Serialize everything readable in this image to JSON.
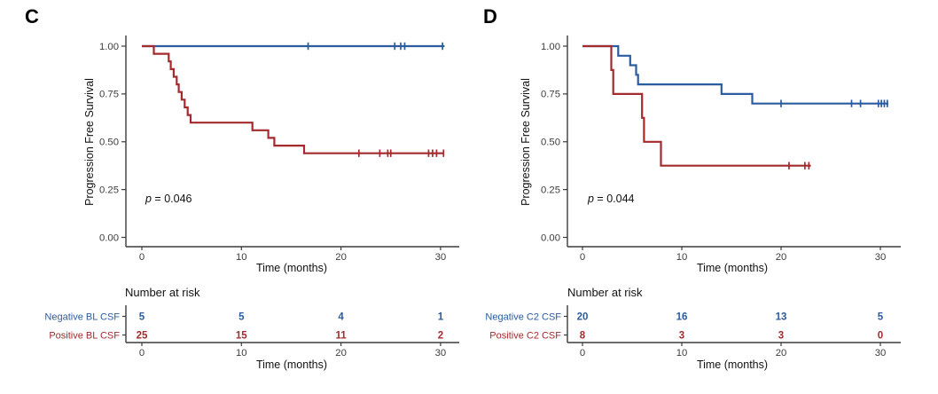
{
  "chart_data": [
    {
      "type": "line",
      "subtype": "kaplan-meier-step",
      "panel_label": "C",
      "xlabel": "Time (months)",
      "ylabel": "Progression Free Survival",
      "p_value": "p = 0.046",
      "xlim": [
        0,
        30
      ],
      "xticks": [
        0,
        10,
        20,
        30
      ],
      "ylim": [
        0,
        1
      ],
      "yticks": [
        "0.00",
        "0.25",
        "0.50",
        "0.75",
        "1.00"
      ],
      "grid": "off",
      "legend": "none",
      "series": [
        {
          "name": "Negative BL CSF",
          "color": "#2B5C9F",
          "steps": [
            [
              0,
              1.0
            ],
            [
              30.4,
              1.0
            ]
          ],
          "censors": [
            [
              16.7,
              1.0
            ],
            [
              25.4,
              1.0
            ],
            [
              26.0,
              1.0
            ],
            [
              26.4,
              1.0
            ],
            [
              30.2,
              1.0
            ]
          ]
        },
        {
          "name": "Positive BL CSF",
          "color": "#A42A2D",
          "steps": [
            [
              0,
              1.0
            ],
            [
              1.2,
              0.96
            ],
            [
              2.7,
              0.92
            ],
            [
              2.9,
              0.88
            ],
            [
              3.2,
              0.84
            ],
            [
              3.5,
              0.8
            ],
            [
              3.7,
              0.76
            ],
            [
              4.0,
              0.72
            ],
            [
              4.3,
              0.68
            ],
            [
              4.6,
              0.64
            ],
            [
              4.9,
              0.6
            ],
            [
              11.1,
              0.56
            ],
            [
              12.7,
              0.52
            ],
            [
              13.3,
              0.48
            ],
            [
              16.3,
              0.44
            ],
            [
              30.3,
              0.44
            ]
          ],
          "censors": [
            [
              21.8,
              0.44
            ],
            [
              23.9,
              0.44
            ],
            [
              24.7,
              0.44
            ],
            [
              25.0,
              0.44
            ],
            [
              28.8,
              0.44
            ],
            [
              29.2,
              0.44
            ],
            [
              29.6,
              0.44
            ],
            [
              30.3,
              0.44
            ]
          ]
        }
      ],
      "risk_table": {
        "title": "Number at risk",
        "times": [
          0,
          10,
          20,
          30
        ],
        "rows": [
          {
            "label": "Negative BL CSF",
            "color": "#2B5C9F",
            "values": [
              "5",
              "5",
              "4",
              "1"
            ]
          },
          {
            "label": "Positive BL CSF",
            "color": "#A42A2D",
            "values": [
              "25",
              "15",
              "11",
              "2"
            ]
          }
        ]
      }
    },
    {
      "type": "line",
      "subtype": "kaplan-meier-step",
      "panel_label": "D",
      "xlabel": "Time (months)",
      "ylabel": "Progression Free Survival",
      "p_value": "p = 0.044",
      "xlim": [
        0,
        30
      ],
      "xticks": [
        0,
        10,
        20,
        30
      ],
      "ylim": [
        0,
        1
      ],
      "yticks": [
        "0.00",
        "0.25",
        "0.50",
        "0.75",
        "1.00"
      ],
      "grid": "off",
      "legend": "none",
      "series": [
        {
          "name": "Negative  C2 CSF",
          "color": "#2B5C9F",
          "steps": [
            [
              0,
              1.0
            ],
            [
              3.6,
              0.95
            ],
            [
              4.8,
              0.9
            ],
            [
              5.4,
              0.85
            ],
            [
              5.6,
              0.8
            ],
            [
              14.0,
              0.75
            ],
            [
              17.1,
              0.7
            ],
            [
              30.8,
              0.7
            ]
          ],
          "censors": [
            [
              20.0,
              0.7
            ],
            [
              27.1,
              0.7
            ],
            [
              28.0,
              0.7
            ],
            [
              29.8,
              0.7
            ],
            [
              30.1,
              0.7
            ],
            [
              30.4,
              0.7
            ],
            [
              30.7,
              0.7
            ]
          ]
        },
        {
          "name": "Positive C2 CSF",
          "color": "#A42A2D",
          "steps": [
            [
              0,
              1.0
            ],
            [
              2.9,
              0.875
            ],
            [
              3.1,
              0.75
            ],
            [
              6.0,
              0.625
            ],
            [
              6.2,
              0.5
            ],
            [
              7.9,
              0.375
            ],
            [
              23.0,
              0.375
            ]
          ],
          "censors": [
            [
              20.8,
              0.375
            ],
            [
              22.4,
              0.375
            ],
            [
              22.8,
              0.375
            ]
          ]
        }
      ],
      "risk_table": {
        "title": "Number at risk",
        "times": [
          0,
          10,
          20,
          30
        ],
        "rows": [
          {
            "label": "Negative  C2 CSF",
            "color": "#2B5C9F",
            "values": [
              "20",
              "16",
              "13",
              "5"
            ]
          },
          {
            "label": "Positive C2 CSF",
            "color": "#A42A2D",
            "values": [
              "8",
              "3",
              "3",
              "0"
            ]
          }
        ]
      }
    }
  ]
}
